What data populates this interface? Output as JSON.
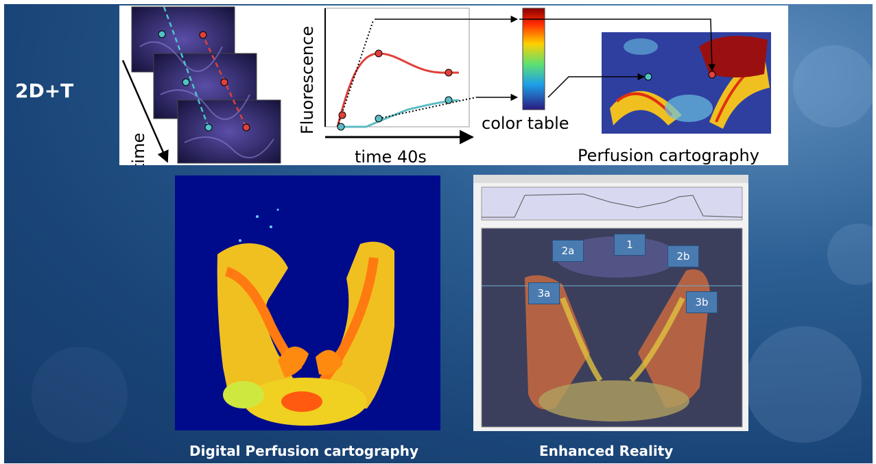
{
  "slide": {
    "title": "2D+T",
    "caption_left": "Digital Perfusion cartography",
    "caption_right": "Enhanced Reality"
  },
  "diagram": {
    "time_axis_label": "time",
    "y_axis_label": "Fluorescence",
    "x_axis_label": "time 40s",
    "color_table_label": "color table",
    "perfusion_label": "Perfusion cartography"
  },
  "enhanced_reality": {
    "region_labels": [
      "2a",
      "1",
      "2b",
      "3a",
      "3b"
    ]
  },
  "colors": {
    "background": "#1a4578",
    "curve_red": "#e0413a",
    "curve_teal": "#5bbcc4",
    "region_label_bg": "#4a7bb0"
  },
  "icons": [
    "frame-stack",
    "color-table-bar",
    "perfusion-map"
  ]
}
